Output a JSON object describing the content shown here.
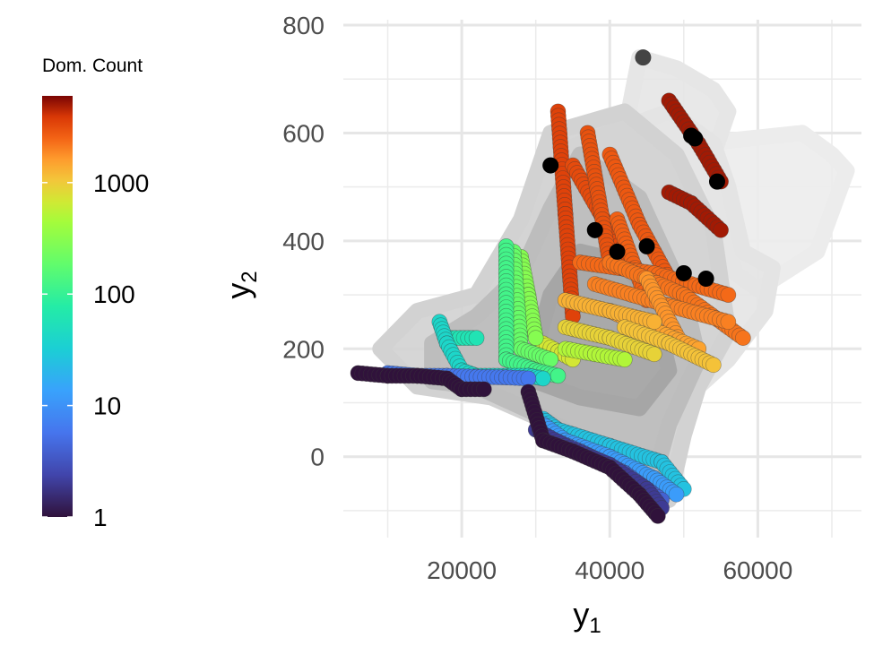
{
  "chart_data": {
    "type": "scatter",
    "xlabel": "y",
    "xlabel_sub": "1",
    "ylabel": "y",
    "ylabel_sub": "2",
    "xlim": [
      4000,
      74000
    ],
    "ylim": [
      -150,
      810
    ],
    "x_ticks": [
      20000,
      40000,
      60000
    ],
    "x_tick_labels": [
      "20000",
      "40000",
      "60000"
    ],
    "y_ticks": [
      0,
      200,
      400,
      600,
      800
    ],
    "y_tick_labels": [
      "0",
      "200",
      "400",
      "600",
      "800"
    ],
    "grid": true,
    "legend": {
      "title": "Dom. Count",
      "position": "left",
      "scale": "log10",
      "range": [
        1,
        6000
      ],
      "ticks": [
        1,
        10,
        100,
        1000
      ],
      "tick_labels": [
        "1",
        "10",
        "100",
        "1000"
      ],
      "colormap": "turbo"
    },
    "shaded_regions": [
      {
        "color": "#ececec",
        "polygon": [
          [
            52000,
            580
          ],
          [
            66000,
            600
          ],
          [
            70000,
            560
          ],
          [
            72000,
            530
          ],
          [
            68000,
            380
          ],
          [
            60000,
            310
          ],
          [
            57000,
            340
          ],
          [
            55000,
            450
          ]
        ]
      },
      {
        "color": "#e6e6e6",
        "polygon": [
          [
            42000,
            600
          ],
          [
            44000,
            740
          ],
          [
            49000,
            720
          ],
          [
            54000,
            680
          ],
          [
            56000,
            640
          ],
          [
            54000,
            560
          ],
          [
            50000,
            480
          ],
          [
            46000,
            480
          ]
        ]
      },
      {
        "color": "#e4e4e4",
        "polygon": [
          [
            22000,
            250
          ],
          [
            28000,
            420
          ],
          [
            32000,
            560
          ],
          [
            40000,
            600
          ],
          [
            48000,
            640
          ],
          [
            54000,
            580
          ],
          [
            56000,
            500
          ],
          [
            58000,
            380
          ],
          [
            62000,
            350
          ],
          [
            61000,
            270
          ],
          [
            56000,
            180
          ],
          [
            48000,
            80
          ],
          [
            42000,
            80
          ],
          [
            30000,
            130
          ],
          [
            20000,
            160
          ]
        ]
      },
      {
        "color": "#d2d2d2",
        "polygon": [
          [
            9000,
            200
          ],
          [
            14000,
            270
          ],
          [
            22000,
            300
          ],
          [
            28000,
            440
          ],
          [
            32000,
            600
          ],
          [
            42000,
            640
          ],
          [
            49000,
            560
          ],
          [
            54000,
            420
          ],
          [
            56000,
            230
          ],
          [
            52000,
            130
          ],
          [
            50000,
            40
          ],
          [
            48000,
            -80
          ],
          [
            44000,
            -50
          ],
          [
            34000,
            50
          ],
          [
            24000,
            110
          ],
          [
            14000,
            130
          ]
        ]
      },
      {
        "color": "#bdbdbd",
        "polygon": [
          [
            16000,
            210
          ],
          [
            22000,
            260
          ],
          [
            28000,
            340
          ],
          [
            32000,
            460
          ],
          [
            36000,
            560
          ],
          [
            44000,
            480
          ],
          [
            50000,
            300
          ],
          [
            52000,
            180
          ],
          [
            48000,
            60
          ],
          [
            46000,
            -40
          ],
          [
            38000,
            20
          ],
          [
            30000,
            80
          ],
          [
            22000,
            130
          ],
          [
            16000,
            140
          ]
        ]
      },
      {
        "color": "#a6a6a6",
        "polygon": [
          [
            30000,
            200
          ],
          [
            32000,
            300
          ],
          [
            36000,
            380
          ],
          [
            42000,
            360
          ],
          [
            46000,
            280
          ],
          [
            48000,
            160
          ],
          [
            44000,
            90
          ],
          [
            36000,
            110
          ],
          [
            30000,
            140
          ]
        ]
      }
    ],
    "series": [
      {
        "color_value": 5000,
        "x": [
          48000,
          52000,
          55000
        ],
        "y": [
          660,
          580,
          510
        ]
      },
      {
        "color_value": 5000,
        "x": [
          48000,
          51000,
          55000
        ],
        "y": [
          490,
          470,
          420
        ]
      },
      {
        "color_value": 3500,
        "x": [
          33000,
          34000,
          35000
        ],
        "y": [
          640,
          450,
          260
        ]
      },
      {
        "color_value": 3200,
        "x": [
          35000,
          40000,
          46000
        ],
        "y": [
          540,
          420,
          300
        ]
      },
      {
        "color_value": 3000,
        "x": [
          37000,
          40000
        ],
        "y": [
          600,
          360
        ]
      },
      {
        "color_value": 2800,
        "x": [
          40000,
          44000,
          48000
        ],
        "y": [
          560,
          430,
          330
        ]
      },
      {
        "color_value": 2600,
        "x": [
          41000,
          45000
        ],
        "y": [
          440,
          290
        ]
      },
      {
        "color_value": 2400,
        "x": [
          36000,
          46000,
          56000
        ],
        "y": [
          360,
          340,
          300
        ]
      },
      {
        "color_value": 2200,
        "x": [
          40000,
          50000,
          58000
        ],
        "y": [
          360,
          300,
          220
        ]
      },
      {
        "color_value": 2000,
        "x": [
          38000,
          48000,
          56000
        ],
        "y": [
          320,
          280,
          250
        ]
      },
      {
        "color_value": 1700,
        "x": [
          45000,
          50000
        ],
        "y": [
          330,
          200
        ]
      },
      {
        "color_value": 1500,
        "x": [
          40000,
          46000,
          52000
        ],
        "y": [
          270,
          235,
          200
        ]
      },
      {
        "color_value": 1300,
        "x": [
          34000,
          40000,
          46000
        ],
        "y": [
          290,
          270,
          250
        ]
      },
      {
        "color_value": 1100,
        "x": [
          42000,
          48000,
          54000
        ],
        "y": [
          240,
          210,
          170
        ]
      },
      {
        "color_value": 900,
        "x": [
          34000,
          40000,
          46000
        ],
        "y": [
          240,
          220,
          190
        ]
      },
      {
        "color_value": 700,
        "x": [
          31000,
          33000,
          35000
        ],
        "y": [
          210,
          195,
          180
        ]
      },
      {
        "color_value": 500,
        "x": [
          34000,
          38000,
          42000
        ],
        "y": [
          200,
          190,
          180
        ]
      },
      {
        "color_value": 300,
        "x": [
          28000,
          29000,
          30000
        ],
        "y": [
          370,
          300,
          220
        ]
      },
      {
        "color_value": 200,
        "x": [
          27000,
          28000,
          32000
        ],
        "y": [
          380,
          200,
          180
        ]
      },
      {
        "color_value": 120,
        "x": [
          26000,
          26000,
          30000,
          33000
        ],
        "y": [
          390,
          180,
          160,
          150
        ]
      },
      {
        "color_value": 40,
        "x": [
          17000,
          18000,
          20000,
          22000,
          26000,
          29000,
          31000
        ],
        "y": [
          250,
          210,
          160,
          150,
          150,
          150,
          145
        ]
      },
      {
        "color_value": 60,
        "x": [
          18000,
          22000
        ],
        "y": [
          220,
          220
        ]
      },
      {
        "color_value": 25,
        "x": [
          31000,
          33000,
          40000,
          47000,
          50000
        ],
        "y": [
          70,
          50,
          20,
          -10,
          -60
        ]
      },
      {
        "color_value": 12,
        "x": [
          31000,
          34000,
          40000,
          46000,
          49000
        ],
        "y": [
          60,
          30,
          0,
          -40,
          -70
        ]
      },
      {
        "color_value": 6,
        "x": [
          10000,
          14000,
          18000,
          22000,
          26000,
          29000
        ],
        "y": [
          155,
          150,
          150,
          148,
          147,
          145
        ]
      },
      {
        "color_value": 4,
        "x": [
          31000,
          36000,
          42000,
          47000
        ],
        "y": [
          40,
          10,
          -30,
          -80
        ]
      },
      {
        "color_value": 1,
        "x": [
          6000,
          10000,
          14000,
          18000,
          20000,
          23000
        ],
        "y": [
          155,
          150,
          150,
          145,
          125,
          125
        ]
      },
      {
        "color_value": 1,
        "x": [
          29000,
          31000,
          35000,
          40000,
          44000,
          46500
        ],
        "y": [
          120,
          30,
          10,
          -20,
          -70,
          -110
        ]
      },
      {
        "color_value": 2,
        "x": [
          30000,
          34000,
          40000,
          45000,
          47000
        ],
        "y": [
          50,
          20,
          -15,
          -60,
          -95
        ]
      }
    ],
    "black_points": {
      "x": [
        44500,
        51000,
        51500,
        54500,
        50000,
        53000,
        45000,
        32000,
        38000,
        41000
      ],
      "y": [
        740,
        595,
        590,
        510,
        340,
        330,
        390,
        540,
        420,
        380
      ]
    }
  }
}
